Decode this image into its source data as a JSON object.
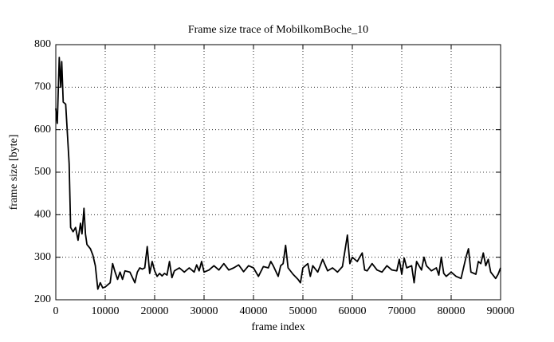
{
  "chart_data": {
    "type": "line",
    "title": "Frame size trace of MobilkomBoche_10",
    "x_label": "frame index",
    "y_label": "frame size [byte]",
    "x": [
      0,
      300,
      700,
      1000,
      1200,
      1500,
      2000,
      2300,
      2700,
      3000,
      3500,
      4000,
      4500,
      5000,
      5300,
      5700,
      6000,
      6300,
      7000,
      7500,
      8000,
      8500,
      9000,
      9500,
      10000,
      10500,
      11000,
      11500,
      12000,
      12500,
      13000,
      13500,
      14000,
      15000,
      16000,
      16500,
      17000,
      17500,
      18000,
      18500,
      19000,
      19500,
      20000,
      20500,
      21000,
      21500,
      22000,
      22500,
      23000,
      23500,
      24000,
      25000,
      26000,
      27000,
      28000,
      28500,
      29000,
      29500,
      30000,
      31000,
      32000,
      33000,
      34000,
      35000,
      36000,
      37000,
      38000,
      39000,
      40000,
      41000,
      42000,
      43000,
      43500,
      44000,
      45000,
      45500,
      46000,
      46500,
      47000,
      48000,
      49000,
      49500,
      50000,
      51000,
      51500,
      52000,
      53000,
      54000,
      55000,
      56000,
      57000,
      58000,
      59000,
      59500,
      60000,
      61000,
      62000,
      62500,
      63000,
      64000,
      65000,
      66000,
      67000,
      68000,
      69000,
      69500,
      70000,
      70500,
      71000,
      72000,
      72500,
      73000,
      74000,
      74500,
      75000,
      76000,
      77000,
      77500,
      78000,
      78500,
      79000,
      80000,
      81000,
      82000,
      83000,
      83500,
      84000,
      85000,
      85500,
      86000,
      86500,
      87000,
      87500,
      88000,
      89000,
      89500,
      90000
    ],
    "values": [
      650,
      615,
      770,
      700,
      760,
      665,
      660,
      600,
      520,
      370,
      360,
      370,
      340,
      380,
      355,
      415,
      355,
      330,
      320,
      305,
      280,
      225,
      240,
      228,
      230,
      235,
      240,
      285,
      265,
      248,
      265,
      248,
      268,
      265,
      240,
      265,
      275,
      272,
      275,
      325,
      262,
      290,
      268,
      255,
      262,
      256,
      262,
      258,
      290,
      252,
      268,
      275,
      265,
      275,
      265,
      282,
      268,
      290,
      265,
      270,
      280,
      270,
      285,
      270,
      275,
      282,
      266,
      280,
      275,
      255,
      278,
      275,
      290,
      280,
      255,
      280,
      285,
      328,
      275,
      260,
      248,
      240,
      275,
      285,
      255,
      280,
      265,
      295,
      268,
      275,
      265,
      278,
      352,
      285,
      300,
      290,
      310,
      270,
      268,
      285,
      270,
      265,
      280,
      270,
      268,
      295,
      260,
      298,
      275,
      280,
      240,
      290,
      270,
      300,
      280,
      268,
      275,
      258,
      300,
      262,
      255,
      265,
      255,
      250,
      300,
      320,
      265,
      260,
      290,
      285,
      310,
      280,
      295,
      265,
      250,
      260,
      275
    ],
    "color": "#000000",
    "xlim": [
      0,
      90000
    ],
    "xticks": [
      0,
      10000,
      20000,
      30000,
      40000,
      50000,
      60000,
      70000,
      80000,
      90000
    ],
    "ylim": [
      200,
      800
    ],
    "yticks": [
      200,
      300,
      400,
      500,
      600,
      700,
      800
    ],
    "grid": true
  }
}
